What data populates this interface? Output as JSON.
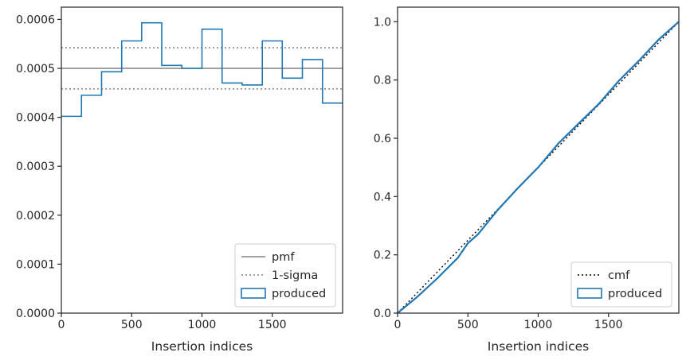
{
  "chart_data": [
    {
      "type": "histogram",
      "xlabel": "Insertion indices",
      "ylabel": "",
      "xlim": [
        0,
        2000
      ],
      "ylim": [
        0,
        0.000625
      ],
      "x_ticks": [
        0,
        500,
        1000,
        1500
      ],
      "x_tick_labels": [
        "0",
        "500",
        "1000",
        "1500"
      ],
      "y_ticks": [
        0,
        0.0001,
        0.0002,
        0.0003,
        0.0004,
        0.0005,
        0.0006
      ],
      "y_tick_labels": [
        "0.0000",
        "0.0001",
        "0.0002",
        "0.0003",
        "0.0004",
        "0.0005",
        "0.0006"
      ],
      "grid": false,
      "legend_position": "bottom-right",
      "legend": [
        "pmf",
        "1-sigma",
        "produced"
      ],
      "reference_lines": [
        {
          "name": "pmf",
          "y": 0.0005,
          "style": "solid",
          "color": "#808080"
        },
        {
          "name": "1-sigma",
          "y": 0.000542,
          "style": "dotted",
          "color": "#808080"
        },
        {
          "name": "1-sigma",
          "y": 0.000458,
          "style": "dotted",
          "color": "#808080"
        }
      ],
      "series": [
        {
          "name": "produced",
          "color": "#1f77b4",
          "bin_edges": [
            0,
            143,
            286,
            429,
            571,
            714,
            857,
            1000,
            1143,
            1286,
            1429,
            1571,
            1714,
            1857,
            2000
          ],
          "values": [
            0.000402,
            0.000445,
            0.000493,
            0.000556,
            0.000593,
            0.000506,
            0.0005,
            0.00058,
            0.00047,
            0.000466,
            0.000556,
            0.00048,
            0.000518,
            0.000429
          ]
        }
      ]
    },
    {
      "type": "line",
      "xlabel": "Insertion indices",
      "ylabel": "",
      "xlim": [
        0,
        2000
      ],
      "ylim": [
        0,
        1.05
      ],
      "x_ticks": [
        0,
        500,
        1000,
        1500
      ],
      "x_tick_labels": [
        "0",
        "500",
        "1000",
        "1500"
      ],
      "y_ticks": [
        0,
        0.2,
        0.4,
        0.6,
        0.8,
        1.0
      ],
      "y_tick_labels": [
        "0.0",
        "0.2",
        "0.4",
        "0.6",
        "0.8",
        "1.0"
      ],
      "grid": false,
      "legend_position": "bottom-right",
      "legend": [
        "cmf",
        "produced"
      ],
      "series": [
        {
          "name": "cmf",
          "style": "dotted",
          "color": "#000000",
          "x": [
            0,
            2000
          ],
          "y": [
            0,
            1.0
          ]
        },
        {
          "name": "produced",
          "color": "#1f77b4",
          "x": [
            0,
            143,
            286,
            429,
            500,
            571,
            714,
            857,
            1000,
            1143,
            1286,
            1429,
            1571,
            1714,
            1857,
            2000
          ],
          "y": [
            0,
            0.057,
            0.121,
            0.19,
            0.24,
            0.27,
            0.355,
            0.43,
            0.5,
            0.582,
            0.65,
            0.717,
            0.796,
            0.865,
            0.939,
            1.0
          ]
        }
      ]
    }
  ]
}
